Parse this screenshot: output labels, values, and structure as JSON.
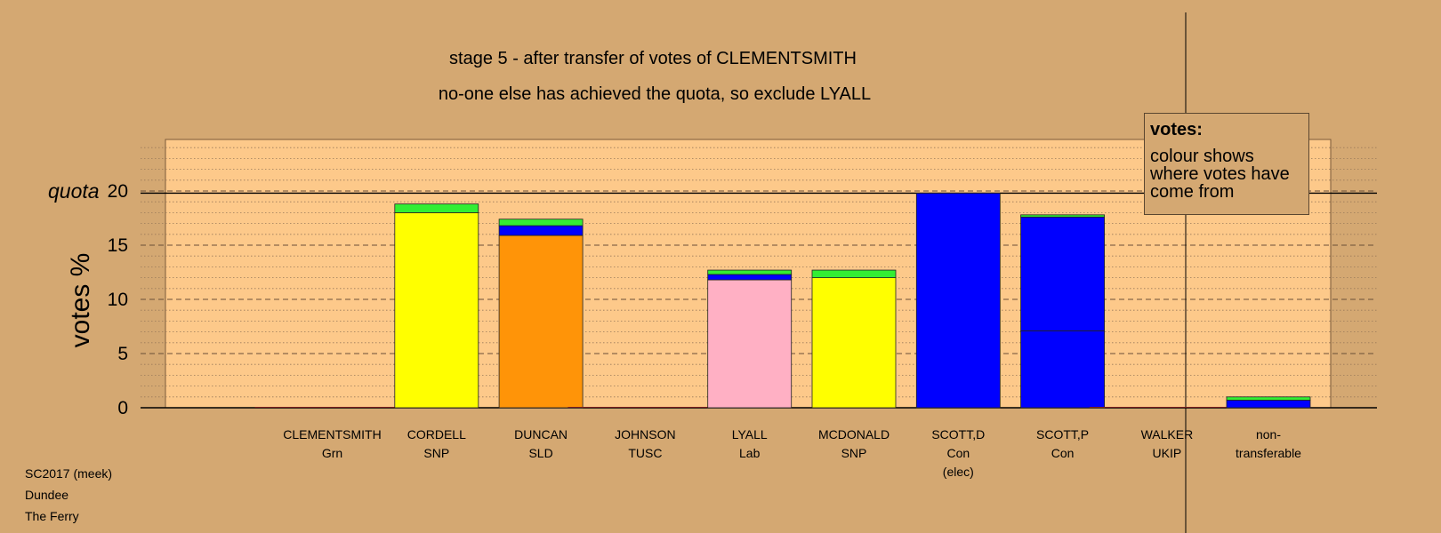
{
  "colors": {
    "background": "#d4a872",
    "plot_background": "#fdc98a",
    "Grn": "#33ee33",
    "SNP": "#ffff00",
    "SLD": "#ff9408",
    "Lab": "#ffb0c4",
    "Con": "#0000ff",
    "nontransferable": "#0000ff"
  },
  "chart_data": {
    "type": "bar",
    "stacked": true,
    "title": "stage 5 - after transfer of votes of CLEMENTSMITH",
    "subtitle": "no-one else has achieved the quota, so exclude LYALL",
    "ylabel": "votes %",
    "quota_label": "quota",
    "quota_value": 19.8,
    "ylim": [
      0,
      25
    ],
    "yticks": [
      0,
      5,
      10,
      15,
      20
    ],
    "grid": true,
    "categories": [
      {
        "name": "CLEMENTSMITH",
        "party": "Grn",
        "note": ""
      },
      {
        "name": "CORDELL",
        "party": "SNP",
        "note": ""
      },
      {
        "name": "DUNCAN",
        "party": "SLD",
        "note": ""
      },
      {
        "name": "JOHNSON",
        "party": "TUSC",
        "note": ""
      },
      {
        "name": "LYALL",
        "party": "Lab",
        "note": ""
      },
      {
        "name": "MCDONALD",
        "party": "SNP",
        "note": ""
      },
      {
        "name": "SCOTT,D",
        "party": "Con",
        "note": "(elec)"
      },
      {
        "name": "SCOTT,P",
        "party": "Con",
        "note": ""
      },
      {
        "name": "WALKER",
        "party": "UKIP",
        "note": ""
      }
    ],
    "bars": [
      [
        {
          "source": "Grn",
          "value": 0.0
        }
      ],
      [
        {
          "source": "SNP",
          "value": 18.0
        },
        {
          "source": "Grn",
          "value": 0.8
        }
      ],
      [
        {
          "source": "SLD",
          "value": 15.9
        },
        {
          "source": "Con",
          "value": 0.9
        },
        {
          "source": "Grn",
          "value": 0.6
        }
      ],
      [
        {
          "source": "SNP",
          "value": 0.0
        }
      ],
      [
        {
          "source": "Lab",
          "value": 11.8
        },
        {
          "source": "Con",
          "value": 0.5
        },
        {
          "source": "Grn",
          "value": 0.4
        }
      ],
      [
        {
          "source": "SNP",
          "value": 12.0
        },
        {
          "source": "Grn",
          "value": 0.7
        }
      ],
      [
        {
          "source": "Con",
          "value": 19.8
        }
      ],
      [
        {
          "source": "Con",
          "value": 7.1
        },
        {
          "source": "Con",
          "value": 10.5
        },
        {
          "source": "Grn",
          "value": 0.2
        }
      ],
      [
        {
          "source": "SNP",
          "value": 0.0
        }
      ]
    ],
    "nontransferable": {
      "label_line1": "non-",
      "label_line2": "transferable",
      "segments": [
        {
          "source": "nontransferable",
          "value": 0.7
        },
        {
          "source": "Grn",
          "value": 0.3
        }
      ]
    }
  },
  "legend": {
    "title": "votes:",
    "body": "colour shows where votes have come from"
  },
  "footer": {
    "line1": "SC2017 (meek)",
    "line2": "Dundee",
    "line3": "The Ferry"
  }
}
